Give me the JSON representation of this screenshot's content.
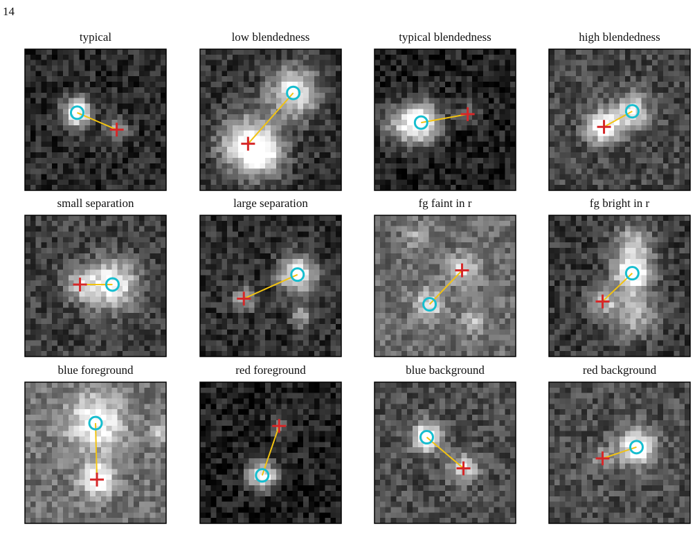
{
  "page_number": "14",
  "panels": [
    {
      "title": "typical"
    },
    {
      "title": "low blendedness"
    },
    {
      "title": "typical blendedness"
    },
    {
      "title": "high blendedness"
    },
    {
      "title": "small separation"
    },
    {
      "title": "large separation"
    },
    {
      "title": "fg faint in r"
    },
    {
      "title": "fg bright in r"
    },
    {
      "title": "blue foreground"
    },
    {
      "title": "red foreground"
    },
    {
      "title": "blue background"
    },
    {
      "title": "red background"
    }
  ]
}
